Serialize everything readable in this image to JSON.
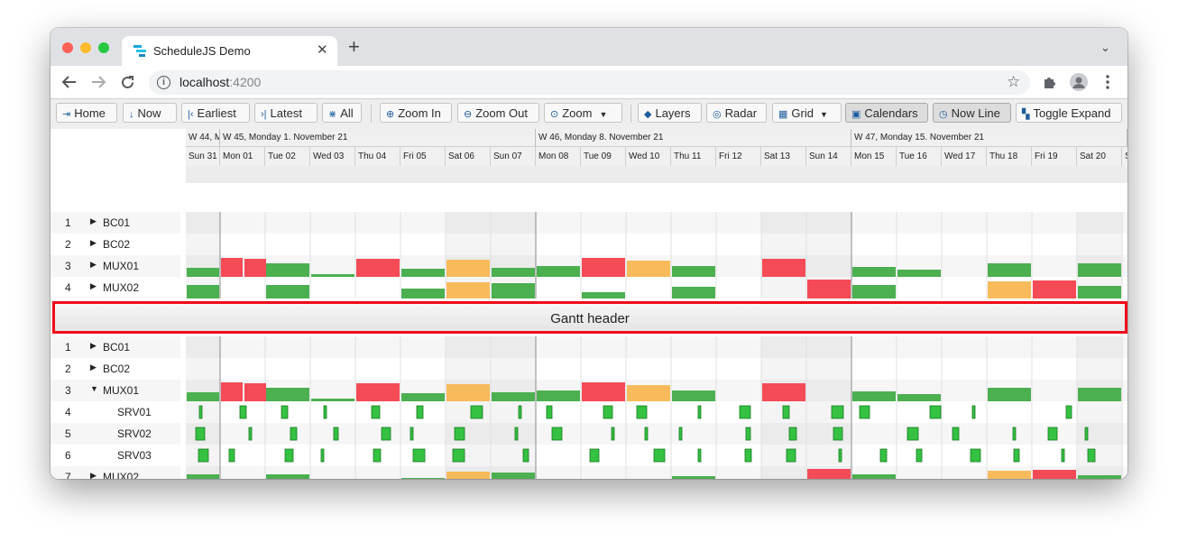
{
  "browser": {
    "tab_title": "ScheduleJS Demo",
    "close_glyph": "✕",
    "new_tab_glyph": "+",
    "tab_list_glyph": "⌄",
    "url_host": "localhost",
    "url_port": ":4200",
    "icons": [
      "back-arrow-icon",
      "forward-arrow-icon",
      "reload-icon",
      "info-icon",
      "star-icon",
      "puzzle-icon",
      "profile-icon",
      "kebab-menu-icon"
    ]
  },
  "toolbar": {
    "home": "Home",
    "now": "Now",
    "earliest": "Earliest",
    "latest": "Latest",
    "all": "All",
    "zoom_in": "Zoom In",
    "zoom_out": "Zoom Out",
    "zoom": "Zoom",
    "layers": "Layers",
    "radar": "Radar",
    "grid": "Grid",
    "calendars": "Calendars",
    "now_line": "Now Line",
    "toggle_expand": "Toggle Expand",
    "active": [
      "Calendars",
      "Now Line"
    ]
  },
  "timeline": {
    "weeks": [
      "W 44, M",
      "W 45, Monday 1. November 21",
      "W 46, Monday 8. November 21",
      "W 47, Monday 15. November 21"
    ],
    "days": [
      "Sun 31",
      "Mon 01",
      "Tue 02",
      "Wed 03",
      "Thu 04",
      "Fri 05",
      "Sat 06",
      "Sun 07",
      "Mon 08",
      "Tue 09",
      "Wed 10",
      "Thu 11",
      "Fri 12",
      "Sat 13",
      "Sun 14",
      "Mon 15",
      "Tue 16",
      "Wed 17",
      "Thu 18",
      "Fri 19",
      "Sat 20",
      "S"
    ]
  },
  "top_panel": {
    "rows": [
      {
        "num": "1",
        "name": "BC01",
        "expanded": false
      },
      {
        "num": "2",
        "name": "BC02",
        "expanded": false
      },
      {
        "num": "3",
        "name": "MUX01",
        "expanded": false
      },
      {
        "num": "4",
        "name": "MUX02",
        "expanded": false
      }
    ]
  },
  "gantt_header": {
    "label": "Gantt header"
  },
  "bottom_panel": {
    "rows": [
      {
        "num": "1",
        "name": "BC01",
        "expanded": false
      },
      {
        "num": "2",
        "name": "BC02",
        "expanded": false
      },
      {
        "num": "3",
        "name": "MUX01",
        "expanded": true
      },
      {
        "num": "4",
        "name": "SRV01",
        "child": true
      },
      {
        "num": "5",
        "name": "SRV02",
        "child": true
      },
      {
        "num": "6",
        "name": "SRV03",
        "child": true
      },
      {
        "num": "7",
        "name": "MUX02",
        "expanded": false
      }
    ]
  },
  "colors": {
    "load_normal": "#4caf50",
    "load_warning": "#f8bb5c",
    "load_critical": "#f44b57",
    "activity": "#35c142",
    "activity_border": "#177a1f",
    "highlight_border": "#ef0b1a"
  },
  "load_profiles": {
    "MUX01": [
      [
        "Sun 31",
        0.45,
        "normal"
      ],
      [
        "Mon 01",
        0.95,
        "critical"
      ],
      [
        "Mon 01",
        0.9,
        "critical"
      ],
      [
        "Tue 02",
        0.7,
        "normal"
      ],
      [
        "Wed 03",
        0.15,
        "normal"
      ],
      [
        "Thu 04",
        0.9,
        "critical"
      ],
      [
        "Fri 05",
        0.4,
        "normal"
      ],
      [
        "Sat 06",
        0.85,
        "warning"
      ],
      [
        "Sun 07",
        0.45,
        "normal"
      ],
      [
        "Mon 08",
        0.55,
        "normal"
      ],
      [
        "Tue 09",
        0.95,
        "critical"
      ],
      [
        "Wed 10",
        0.8,
        "warning"
      ],
      [
        "Thu 11",
        0.55,
        "normal"
      ],
      [
        "Sat 13",
        0.9,
        "critical"
      ],
      [
        "Mon 15",
        0.5,
        "normal"
      ],
      [
        "Tue 16",
        0.35,
        "normal"
      ],
      [
        "Thu 18",
        0.7,
        "normal"
      ],
      [
        "Sat 20",
        0.7,
        "normal"
      ]
    ],
    "MUX02": [
      [
        "Sun 31",
        0.7,
        "normal"
      ],
      [
        "Tue 02",
        0.7,
        "normal"
      ],
      [
        "Fri 05",
        0.5,
        "normal"
      ],
      [
        "Sat 06",
        0.8,
        "warning"
      ],
      [
        "Sun 07",
        0.75,
        "normal"
      ],
      [
        "Tue 09",
        0.3,
        "normal"
      ],
      [
        "Thu 11",
        0.6,
        "normal"
      ],
      [
        "Sun 14",
        0.95,
        "critical"
      ],
      [
        "Mon 15",
        0.7,
        "normal"
      ],
      [
        "Thu 18",
        0.85,
        "warning"
      ],
      [
        "Fri 19",
        0.9,
        "critical"
      ],
      [
        "Sat 20",
        0.65,
        "normal"
      ]
    ]
  }
}
